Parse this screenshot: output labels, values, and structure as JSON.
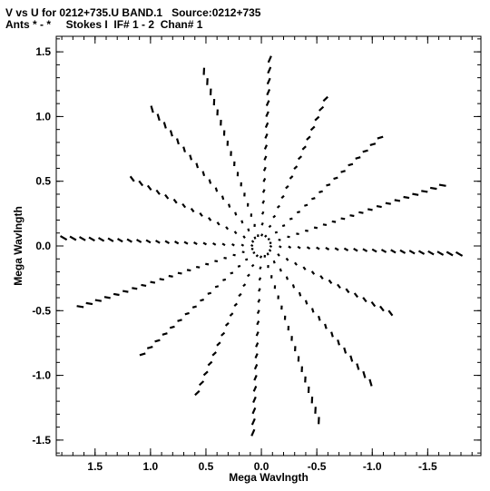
{
  "header": {
    "line1": "V vs U for 0212+735.U BAND.1   Source:0212+735",
    "line2": "Ants * - *     Stokes I  IF# 1 - 2  Chan# 1"
  },
  "chart_data": {
    "type": "scatter",
    "xlabel": "Mega Wavlngth",
    "ylabel": "Mega Wavlngth",
    "xlim": [
      1.85,
      -1.98
    ],
    "ylim": [
      -1.62,
      1.62
    ],
    "x_ticks": [
      1.5,
      1.0,
      0.5,
      0.0,
      -0.5,
      -1.0,
      -1.5
    ],
    "x_tick_labels": [
      "1.5",
      "1.0",
      "0.5",
      "0.0",
      "-0.5",
      "-1.0",
      "-1.5"
    ],
    "y_ticks": [
      1.5,
      1.0,
      0.5,
      0.0,
      -0.5,
      -1.0,
      -1.5
    ],
    "y_tick_labels": [
      "1.5",
      "1.0",
      "0.5",
      "0.0",
      "-0.5",
      "-1.0",
      "-1.5"
    ],
    "grid": false,
    "marker_color": "#000000",
    "baseline_tracks": [
      {
        "angle_deg": 2,
        "max": 1.8
      },
      {
        "angle_deg": 24,
        "max": 1.35
      },
      {
        "angle_deg": 47,
        "max": 1.5
      },
      {
        "angle_deg": 69,
        "max": 1.5
      },
      {
        "angle_deg": 93,
        "max": 1.5
      },
      {
        "angle_deg": 117,
        "max": 1.3
      },
      {
        "angle_deg": 142,
        "max": 1.42
      },
      {
        "angle_deg": 164,
        "max": 1.75
      },
      {
        "angle_deg": 182,
        "max": 1.8
      },
      {
        "angle_deg": 204,
        "max": 1.35
      },
      {
        "angle_deg": 227,
        "max": 1.5
      },
      {
        "angle_deg": 249,
        "max": 1.5
      },
      {
        "angle_deg": 273,
        "max": 1.5
      },
      {
        "angle_deg": 297,
        "max": 1.3
      },
      {
        "angle_deg": 322,
        "max": 1.42
      },
      {
        "angle_deg": 344,
        "max": 1.75
      }
    ],
    "ring_step": 0.085
  }
}
